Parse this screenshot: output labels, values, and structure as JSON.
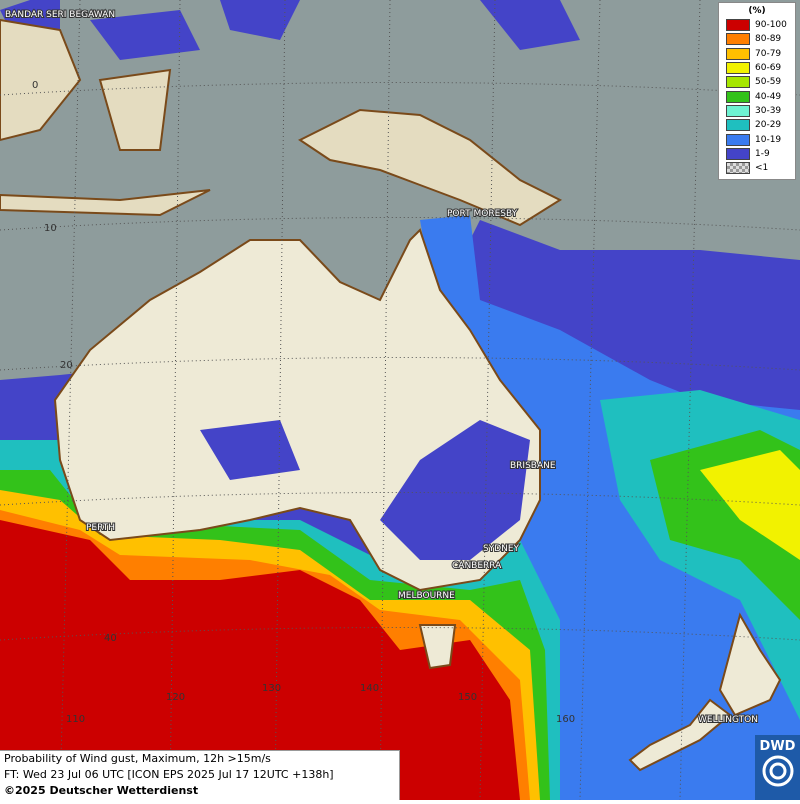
{
  "legend": {
    "title": "(%)",
    "items": [
      {
        "label": "90-100",
        "color": "#cc0000"
      },
      {
        "label": "80-89",
        "color": "#ff7f00"
      },
      {
        "label": "70-79",
        "color": "#ffc000"
      },
      {
        "label": "60-69",
        "color": "#f2f200"
      },
      {
        "label": "50-59",
        "color": "#a6e600"
      },
      {
        "label": "40-49",
        "color": "#33c21a"
      },
      {
        "label": "30-39",
        "color": "#6ef2d2"
      },
      {
        "label": "20-29",
        "color": "#1fbfbf"
      },
      {
        "label": "10-19",
        "color": "#3a7bef"
      },
      {
        "label": "1-9",
        "color": "#4444c8"
      },
      {
        "label": "<1",
        "color": "checker"
      }
    ]
  },
  "cities": [
    "BANDAR SERI BEGAWAN",
    "PORT MORESBY",
    "BRISBANE",
    "PERTH",
    "SYDNEY",
    "CANBERRA",
    "MELBOURNE",
    "WELLINGTON"
  ],
  "grid_labels": [
    "0",
    "10",
    "20",
    "40",
    "110",
    "120",
    "130",
    "140",
    "150",
    "160"
  ],
  "footer": {
    "line1": "Probability of Wind gust, Maximum, 12h >15m/s",
    "line2": "FT: Wed 23 Jul 06 UTC [ICON EPS 2025 Jul 17 12UTC +138h]",
    "copyright": "©2025 Deutscher Wetterdienst"
  },
  "logo": "DWD"
}
